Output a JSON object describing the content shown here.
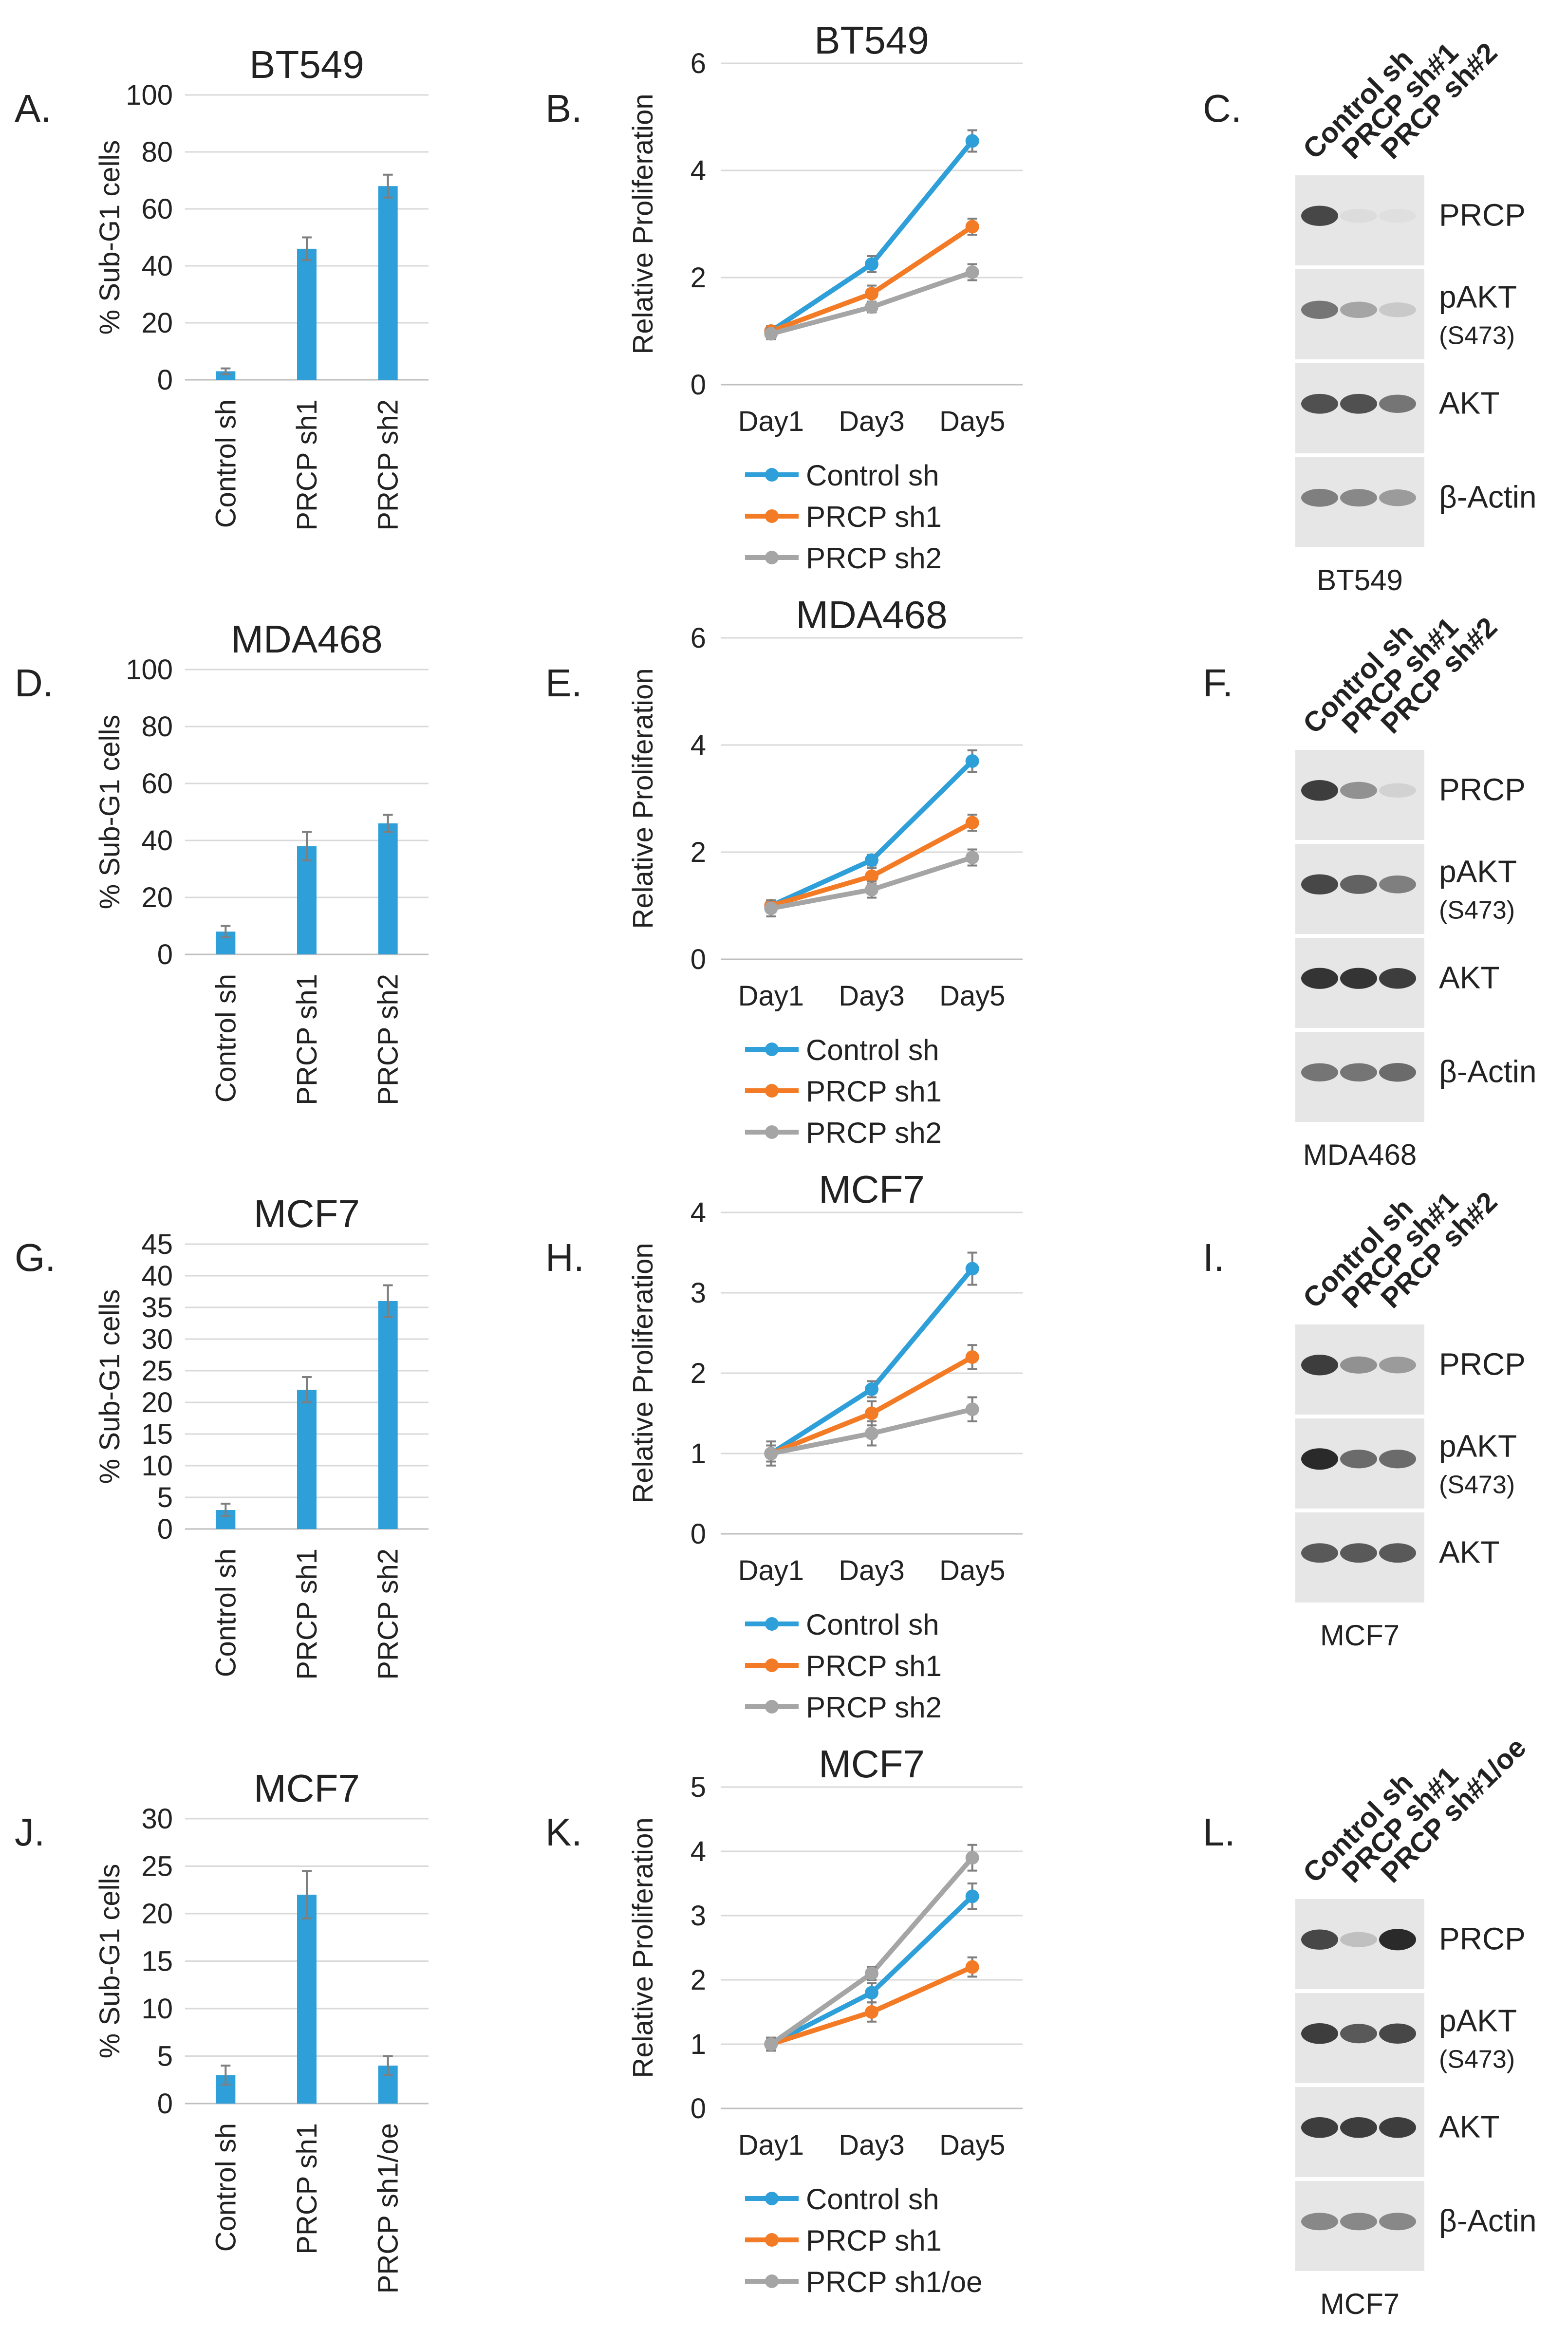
{
  "colors": {
    "blue": "#2e9fd8",
    "orange": "#f47b25",
    "gray": "#a5a5a5",
    "err": "#7f7f7f"
  },
  "rows": [
    {
      "bar_panel": "A.",
      "line_panel": "B.",
      "blot_panel": "C.",
      "bar": {
        "type": "bar",
        "title": "BT549",
        "ylabel": "% Sub-G1 cells",
        "ylim": [
          0,
          100
        ],
        "yticks": [
          0,
          20,
          40,
          60,
          80,
          100
        ],
        "categories": [
          "Control sh",
          "PRCP sh1",
          "PRCP sh2"
        ],
        "values": [
          3,
          46,
          68
        ],
        "errors": [
          1,
          4,
          4
        ]
      },
      "line": {
        "type": "line",
        "title": "BT549",
        "ylabel": "Relative Proliferation",
        "ylim": [
          0,
          6
        ],
        "yticks": [
          0,
          2,
          4,
          6
        ],
        "x": [
          "Day1",
          "Day3",
          "Day5"
        ],
        "series": [
          {
            "name": "Control sh",
            "color": "blue",
            "values": [
              1.0,
              2.25,
              4.55
            ],
            "errors": [
              0.1,
              0.15,
              0.2
            ]
          },
          {
            "name": "PRCP sh1",
            "color": "orange",
            "values": [
              1.0,
              1.7,
              2.95
            ],
            "errors": [
              0.1,
              0.15,
              0.15
            ]
          },
          {
            "name": "PRCP sh2",
            "color": "gray",
            "values": [
              0.95,
              1.45,
              2.1
            ],
            "errors": [
              0.1,
              0.1,
              0.15
            ]
          }
        ]
      },
      "blot": {
        "lanes": [
          "Control sh",
          "PRCP sh#1",
          "PRCP sh#2"
        ],
        "cell_line": "BT549",
        "bands": [
          {
            "label": "PRCP",
            "sub": "",
            "int": [
              0.85,
              0.05,
              0.03
            ]
          },
          {
            "label": "pAKT",
            "sub": "(S473)",
            "int": [
              0.6,
              0.35,
              0.15
            ]
          },
          {
            "label": "AKT",
            "sub": "",
            "int": [
              0.8,
              0.8,
              0.6
            ]
          },
          {
            "label": "β-Actin",
            "sub": "",
            "int": [
              0.55,
              0.5,
              0.4
            ]
          }
        ]
      }
    },
    {
      "bar_panel": "D.",
      "line_panel": "E.",
      "blot_panel": "F.",
      "bar": {
        "type": "bar",
        "title": "MDA468",
        "ylabel": "% Sub-G1 cells",
        "ylim": [
          0,
          100
        ],
        "yticks": [
          0,
          20,
          40,
          60,
          80,
          100
        ],
        "categories": [
          "Control sh",
          "PRCP sh1",
          "PRCP sh2"
        ],
        "values": [
          8,
          38,
          46
        ],
        "errors": [
          2,
          5,
          3
        ]
      },
      "line": {
        "type": "line",
        "title": "MDA468",
        "ylabel": "Relative Proliferation",
        "ylim": [
          0,
          6
        ],
        "yticks": [
          0,
          2,
          4,
          6
        ],
        "x": [
          "Day1",
          "Day3",
          "Day5"
        ],
        "series": [
          {
            "name": "Control sh",
            "color": "blue",
            "values": [
              1.0,
              1.85,
              3.7
            ],
            "errors": [
              0.1,
              0.1,
              0.2
            ]
          },
          {
            "name": "PRCP sh1",
            "color": "orange",
            "values": [
              1.0,
              1.55,
              2.55
            ],
            "errors": [
              0.1,
              0.15,
              0.15
            ]
          },
          {
            "name": "PRCP sh2",
            "color": "gray",
            "values": [
              0.95,
              1.3,
              1.9
            ],
            "errors": [
              0.15,
              0.15,
              0.15
            ]
          }
        ]
      },
      "blot": {
        "lanes": [
          "Control sh",
          "PRCP sh#1",
          "PRCP sh#2"
        ],
        "cell_line": "MDA468",
        "bands": [
          {
            "label": "PRCP",
            "sub": "",
            "int": [
              0.9,
              0.45,
              0.1
            ]
          },
          {
            "label": "pAKT",
            "sub": "(S473)",
            "int": [
              0.85,
              0.7,
              0.55
            ]
          },
          {
            "label": "AKT",
            "sub": "",
            "int": [
              0.95,
              0.95,
              0.9
            ]
          },
          {
            "label": "β-Actin",
            "sub": "",
            "int": [
              0.6,
              0.6,
              0.65
            ]
          }
        ]
      }
    },
    {
      "bar_panel": "G.",
      "line_panel": "H.",
      "blot_panel": "I.",
      "bar": {
        "type": "bar",
        "title": "MCF7",
        "ylabel": "% Sub-G1 cells",
        "ylim": [
          0,
          45
        ],
        "yticks": [
          0,
          5,
          10,
          15,
          20,
          25,
          30,
          35,
          40,
          45
        ],
        "categories": [
          "Control sh",
          "PRCP sh1",
          "PRCP sh2"
        ],
        "values": [
          3,
          22,
          36
        ],
        "errors": [
          1,
          2,
          2.5
        ]
      },
      "line": {
        "type": "line",
        "title": "MCF7",
        "ylabel": "Relative Proliferation",
        "ylim": [
          0,
          4
        ],
        "yticks": [
          0,
          1,
          2,
          3,
          4
        ],
        "x": [
          "Day1",
          "Day3",
          "Day5"
        ],
        "series": [
          {
            "name": "Control sh",
            "color": "blue",
            "values": [
              1.0,
              1.8,
              3.3
            ],
            "errors": [
              0.1,
              0.1,
              0.2
            ]
          },
          {
            "name": "PRCP sh1",
            "color": "orange",
            "values": [
              1.0,
              1.5,
              2.2
            ],
            "errors": [
              0.1,
              0.15,
              0.15
            ]
          },
          {
            "name": "PRCP sh2",
            "color": "gray",
            "values": [
              1.0,
              1.25,
              1.55
            ],
            "errors": [
              0.15,
              0.15,
              0.15
            ]
          }
        ]
      },
      "blot": {
        "lanes": [
          "Control sh",
          "PRCP sh#1",
          "PRCP sh#2"
        ],
        "cell_line": "MCF7",
        "bands": [
          {
            "label": "PRCP",
            "sub": "",
            "int": [
              0.9,
              0.45,
              0.4
            ]
          },
          {
            "label": "pAKT",
            "sub": "(S473)",
            "int": [
              1.0,
              0.65,
              0.65
            ]
          },
          {
            "label": "AKT",
            "sub": "",
            "int": [
              0.75,
              0.75,
              0.75
            ]
          }
        ]
      }
    },
    {
      "bar_panel": "J.",
      "line_panel": "K.",
      "blot_panel": "L.",
      "bar": {
        "type": "bar",
        "title": "MCF7",
        "ylabel": "% Sub-G1 cells",
        "ylim": [
          0,
          30
        ],
        "yticks": [
          0,
          5,
          10,
          15,
          20,
          25,
          30
        ],
        "categories": [
          "Control sh",
          "PRCP sh1",
          "PRCP sh1/oe"
        ],
        "values": [
          3,
          22,
          4
        ],
        "errors": [
          1,
          2.5,
          1
        ]
      },
      "line": {
        "type": "line",
        "title": "MCF7",
        "ylabel": "Relative Proliferation",
        "ylim": [
          0,
          5
        ],
        "yticks": [
          0,
          1,
          2,
          3,
          4,
          5
        ],
        "x": [
          "Day1",
          "Day3",
          "Day5"
        ],
        "series": [
          {
            "name": "Control sh",
            "color": "blue",
            "values": [
              1.0,
              1.8,
              3.3
            ],
            "errors": [
              0.1,
              0.15,
              0.2
            ]
          },
          {
            "name": "PRCP sh1",
            "color": "orange",
            "values": [
              1.0,
              1.5,
              2.2
            ],
            "errors": [
              0.1,
              0.15,
              0.15
            ]
          },
          {
            "name": "PRCP sh1/oe",
            "color": "gray",
            "values": [
              1.0,
              2.1,
              3.9
            ],
            "errors": [
              0.1,
              0.1,
              0.2
            ]
          }
        ]
      },
      "blot": {
        "lanes": [
          "Control sh",
          "PRCP sh#1",
          "PRCP sh#1/oe"
        ],
        "cell_line": "MCF7",
        "bands": [
          {
            "label": "PRCP",
            "sub": "",
            "int": [
              0.85,
              0.2,
              1.0
            ]
          },
          {
            "label": "pAKT",
            "sub": "(S473)",
            "int": [
              0.9,
              0.75,
              0.85
            ]
          },
          {
            "label": "AKT",
            "sub": "",
            "int": [
              0.9,
              0.9,
              0.9
            ]
          },
          {
            "label": "β-Actin",
            "sub": "",
            "int": [
              0.5,
              0.5,
              0.5
            ]
          }
        ]
      }
    }
  ]
}
